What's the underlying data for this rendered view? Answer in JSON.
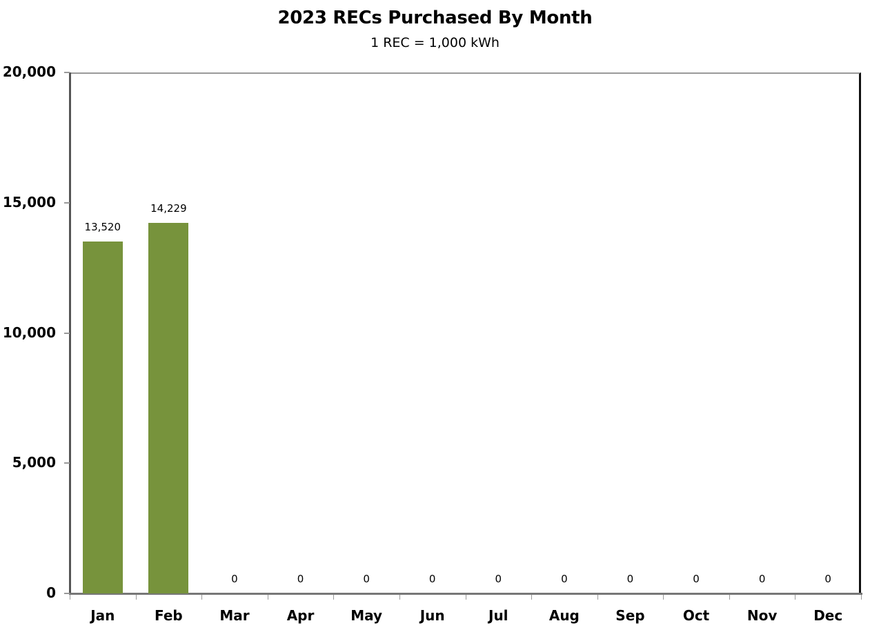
{
  "chart_data": {
    "type": "bar",
    "title": "2023 RECs Purchased By Month",
    "subtitle": "1 REC = 1,000 kWh",
    "xlabel": "",
    "ylabel": "",
    "categories": [
      "Jan",
      "Feb",
      "Mar",
      "Apr",
      "May",
      "Jun",
      "Jul",
      "Aug",
      "Sep",
      "Oct",
      "Nov",
      "Dec"
    ],
    "values": [
      13520,
      14229,
      0,
      0,
      0,
      0,
      0,
      0,
      0,
      0,
      0,
      0
    ],
    "data_labels": [
      "13,520",
      "14,229",
      "0",
      "0",
      "0",
      "0",
      "0",
      "0",
      "0",
      "0",
      "0",
      "0"
    ],
    "ylim": [
      0,
      20000
    ],
    "yticks": [
      0,
      5000,
      10000,
      15000,
      20000
    ],
    "ytick_labels": [
      "0",
      "5,000",
      "10,000",
      "15,000",
      "20,000"
    ],
    "grid": false,
    "legend": null,
    "bar_color": "#77933C"
  }
}
